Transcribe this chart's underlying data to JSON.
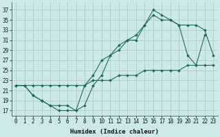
{
  "title": "",
  "xlabel": "Humidex (Indice chaleur)",
  "bg_color": "#cce8e8",
  "grid_color": "#aacccc",
  "line_color": "#1a6b5a",
  "xlim": [
    -0.5,
    23.5
  ],
  "ylim": [
    16.0,
    38.5
  ],
  "yticks": [
    17,
    19,
    21,
    23,
    25,
    27,
    29,
    31,
    33,
    35,
    37
  ],
  "xticks": [
    0,
    1,
    2,
    3,
    4,
    5,
    6,
    7,
    8,
    9,
    10,
    11,
    12,
    13,
    14,
    15,
    16,
    17,
    18,
    19,
    20,
    21,
    22,
    23
  ],
  "line1_x": [
    0,
    1,
    2,
    3,
    4,
    5,
    6,
    7,
    8,
    9,
    10,
    11,
    12,
    13,
    14,
    15,
    16,
    17,
    18,
    19,
    20,
    21,
    22
  ],
  "line1_y": [
    22,
    22,
    20,
    19,
    18,
    17,
    17,
    17,
    18,
    22,
    24,
    28,
    29,
    31,
    31,
    34,
    37,
    36,
    35,
    34,
    28,
    26,
    32
  ],
  "line2_x": [
    0,
    1,
    2,
    3,
    4,
    5,
    6,
    7,
    8,
    9,
    10,
    11,
    12,
    13,
    14,
    15,
    16,
    17,
    18,
    19,
    20,
    21,
    22,
    23
  ],
  "line2_y": [
    22,
    22,
    20,
    19,
    18,
    18,
    18,
    17,
    22,
    24,
    27,
    28,
    30,
    31,
    32,
    34,
    36,
    35,
    35,
    34,
    34,
    34,
    33,
    28
  ],
  "line3_x": [
    0,
    1,
    2,
    3,
    4,
    5,
    6,
    7,
    8,
    9,
    10,
    11,
    12,
    13,
    14,
    15,
    16,
    17,
    18,
    19,
    20,
    21,
    22,
    23
  ],
  "line3_y": [
    22,
    22,
    22,
    22,
    22,
    22,
    22,
    22,
    22,
    23,
    23,
    23,
    24,
    24,
    24,
    25,
    25,
    25,
    25,
    25,
    26,
    26,
    26,
    26
  ],
  "xlabel_fontsize": 6.5,
  "tick_fontsize": 5.5
}
